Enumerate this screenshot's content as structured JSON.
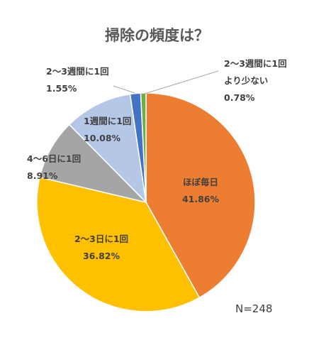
{
  "chart_data": {
    "type": "pie",
    "title": "掃除の頻度は？",
    "note": "N=248",
    "slices": [
      {
        "name": "ほぼ毎日",
        "value": 41.86,
        "percent_label": "41.86%",
        "color": "#ED7D31"
      },
      {
        "name": "2～3日に1回",
        "value": 36.82,
        "percent_label": "36.82%",
        "color": "#FFC000"
      },
      {
        "name": "4～6日に1回",
        "value": 8.91,
        "percent_label": "8.91%",
        "color": "#A5A5A5"
      },
      {
        "name": "1週間に1回",
        "value": 10.08,
        "percent_label": "10.08%",
        "color": "#B4C7E7"
      },
      {
        "name": "2～3週間に1回",
        "value": 1.55,
        "percent_label": "1.55%",
        "color": "#4472C4"
      },
      {
        "name": "2～3週間に1回より少ない",
        "value": 0.78,
        "percent_label": "0.78%",
        "color": "#70AD47"
      }
    ],
    "start_angle_deg": 0,
    "direction": "clockwise",
    "legend": "none"
  }
}
